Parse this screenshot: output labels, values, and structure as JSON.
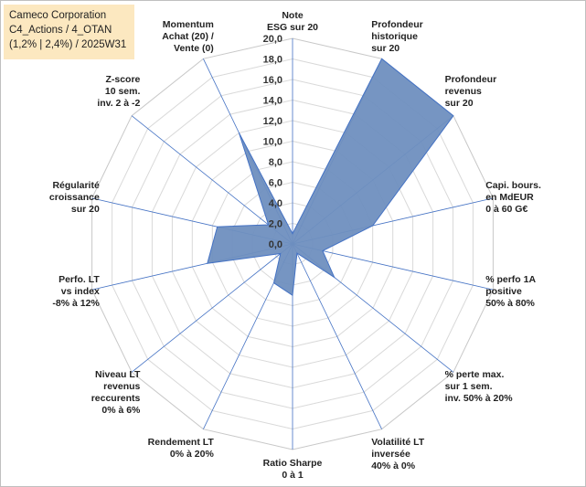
{
  "title_box": {
    "line1": "Cameco Corporation",
    "line2": "C4_Actions / 4_OTAN",
    "line3": "(1,2% | 2,4%) / 2025W31"
  },
  "chart_data": {
    "type": "radar",
    "rmax": 20,
    "ticks": [
      "0,0",
      "2,0",
      "4,0",
      "6,0",
      "8,0",
      "10,0",
      "12,0",
      "14,0",
      "16,0",
      "18,0",
      "20,0"
    ],
    "tick_values": [
      0,
      2,
      4,
      6,
      8,
      10,
      12,
      14,
      16,
      18,
      20
    ],
    "axes": [
      [
        "Note",
        "ESG sur 20"
      ],
      [
        "Profondeur",
        "historique",
        "sur 20"
      ],
      [
        "Profondeur",
        "revenus",
        "sur 20"
      ],
      [
        "Capi. bours.",
        "en MdEUR",
        "0 à 60 G€"
      ],
      [
        "% perfo 1A",
        "positive",
        "50% à 80%"
      ],
      [
        "% perte max.",
        "sur 1 sem.",
        "inv. 50% à 20%"
      ],
      [
        "Volatilité LT",
        "inversée",
        "40% à 0%"
      ],
      [
        "Ratio Sharpe",
        "0 à 1"
      ],
      [
        "Rendement LT",
        "0% à 20%"
      ],
      [
        "Niveau LT",
        "revenus",
        "reccurents",
        "0% à 6%"
      ],
      [
        "Perfo. LT",
        "vs index",
        "-8% à 12%"
      ],
      [
        "Régularité",
        "croissance",
        "sur 20"
      ],
      [
        "Z-score",
        "10 sem.",
        "inv. 2 à -2"
      ],
      [
        "Momentum",
        "Achat (20) /",
        "Vente (0)"
      ]
    ],
    "series": [
      {
        "values": [
          1.0,
          20.0,
          20.0,
          8.0,
          3.0,
          5.2,
          1.0,
          5.0,
          4.2,
          1.5,
          8.5,
          7.5,
          3.0,
          12.0
        ]
      }
    ],
    "colors": {
      "fill": "#6f8fbf",
      "stroke": "#4472c4",
      "grid": "#d9d9d9",
      "spoke": "#4472c4"
    },
    "grid": true
  }
}
